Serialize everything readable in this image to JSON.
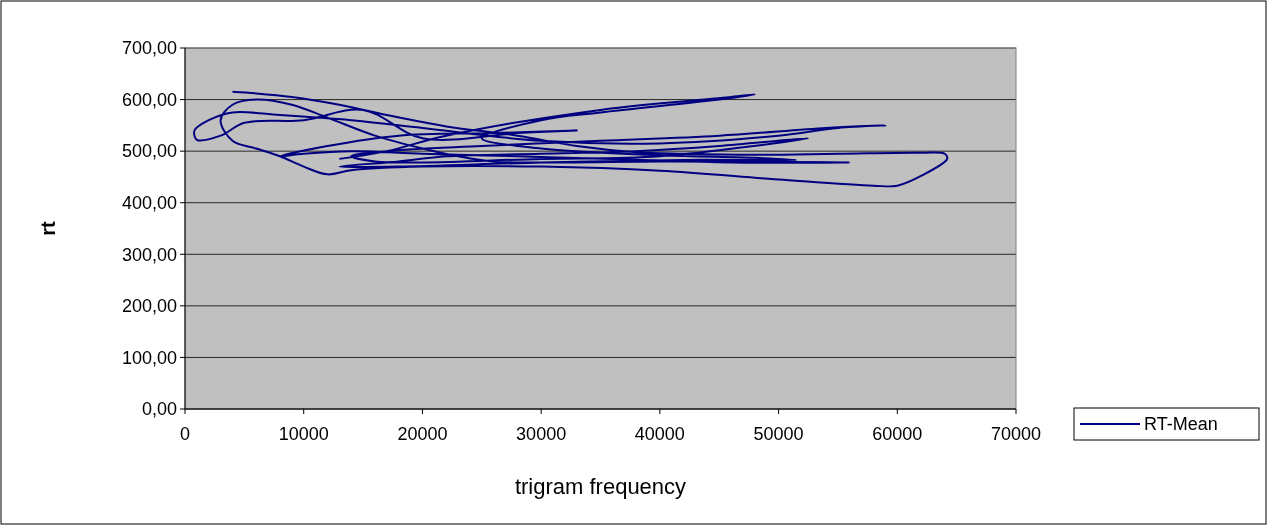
{
  "chart_data": {
    "type": "line",
    "xlabel": "trigram frequency",
    "ylabel": "rt",
    "xlim": [
      0,
      70000
    ],
    "xticks": [
      0,
      10000,
      20000,
      30000,
      40000,
      50000,
      60000,
      70000
    ],
    "ylim": [
      0,
      700
    ],
    "yticks": [
      {
        "value": 0,
        "label": "0,00"
      },
      {
        "value": 100,
        "label": "100,00"
      },
      {
        "value": 200,
        "label": "200,00"
      },
      {
        "value": 300,
        "label": "300,00"
      },
      {
        "value": 400,
        "label": "400,00"
      },
      {
        "value": 500,
        "label": "500,00"
      },
      {
        "value": 600,
        "label": "600,00"
      },
      {
        "value": 700,
        "label": "700,00"
      }
    ],
    "grid": "y",
    "legend": "right",
    "marker": "none",
    "series": [
      {
        "name": "RT-Mean",
        "color": "#000080",
        "x": [
          4000,
          6000,
          9000,
          13000,
          17000,
          22000,
          28000,
          33000,
          38000,
          42000,
          48000,
          55000,
          62000,
          64000,
          64200,
          62000,
          60000,
          58000,
          50000,
          40000,
          30000,
          20000,
          14000,
          12000,
          10000,
          8000,
          6000,
          4000,
          3000,
          4000,
          6000,
          9000,
          12000,
          16000,
          20000,
          23000,
          26000,
          32000,
          40000,
          56000,
          46000,
          36000,
          28000,
          20000,
          14000,
          10000,
          8000,
          12000,
          18000,
          26000,
          33000,
          28000,
          20000,
          15000,
          10000,
          5000,
          3000,
          1000,
          800,
          2000,
          4000,
          8000,
          14000,
          20000,
          30000,
          40000,
          50000,
          55000,
          59000,
          54000,
          45000,
          35000,
          25000,
          17000,
          14000,
          16000,
          20000,
          30000,
          40000,
          52500,
          45000,
          38000,
          30000,
          22000,
          18000,
          13000,
          18000,
          30000,
          42000,
          51500,
          48000,
          40000,
          30000,
          25000,
          30000,
          35000,
          45000,
          48000,
          46000,
          35000,
          22000,
          17000,
          13000
        ],
        "values": [
          615,
          612,
          605,
          590,
          570,
          548,
          530,
          510,
          498,
          495,
          493,
          495,
          497,
          495,
          485,
          452,
          433,
          433,
          445,
          462,
          470,
          470,
          463,
          455,
          470,
          490,
          505,
          520,
          560,
          590,
          600,
          590,
          565,
          530,
          505,
          490,
          480,
          478,
          480,
          478,
          478,
          485,
          490,
          495,
          500,
          495,
          490,
          510,
          530,
          535,
          540,
          535,
          525,
          580,
          560,
          555,
          530,
          522,
          540,
          560,
          575,
          570,
          560,
          545,
          520,
          515,
          530,
          545,
          550,
          545,
          530,
          520,
          510,
          500,
          490,
          480,
          478,
          485,
          490,
          525,
          510,
          500,
          495,
          490,
          480,
          470,
          470,
          478,
          483,
          483,
          487,
          492,
          505,
          525,
          560,
          575,
          600,
          610,
          605,
          580,
          530,
          500,
          485
        ]
      }
    ]
  }
}
